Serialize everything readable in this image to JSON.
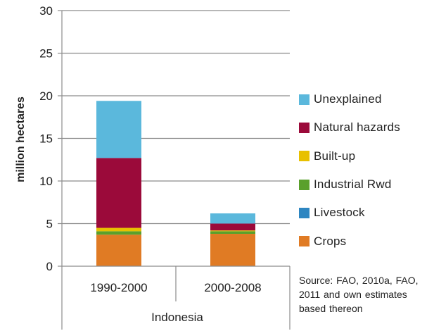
{
  "chart_data": {
    "type": "bar",
    "stacked": true,
    "categories": [
      "1990-2000",
      "2000-2008"
    ],
    "group_label": "Indonesia",
    "ylabel": "million hectares",
    "ylim": [
      0,
      30
    ],
    "yticks": [
      0,
      5,
      10,
      15,
      20,
      25,
      30
    ],
    "grid": true,
    "legend_placement": "right",
    "series": [
      {
        "name": "Crops",
        "color": "#e07b24",
        "values": [
          3.7,
          3.8
        ]
      },
      {
        "name": "Livestock",
        "color": "#2e86c1",
        "values": [
          0.0,
          0.0
        ]
      },
      {
        "name": "Industrial Rwd",
        "color": "#5aa02c",
        "values": [
          0.4,
          0.3
        ]
      },
      {
        "name": "Built-up",
        "color": "#e8c000",
        "values": [
          0.4,
          0.1
        ]
      },
      {
        "name": "Natural hazards",
        "color": "#9b0a3a",
        "values": [
          8.2,
          0.8
        ]
      },
      {
        "name": "Unexplained",
        "color": "#5bb8dc",
        "values": [
          6.7,
          1.2
        ]
      }
    ]
  },
  "source_note": "Source: FAO, 2010a, FAO, 2011 and own estimates based thereon"
}
